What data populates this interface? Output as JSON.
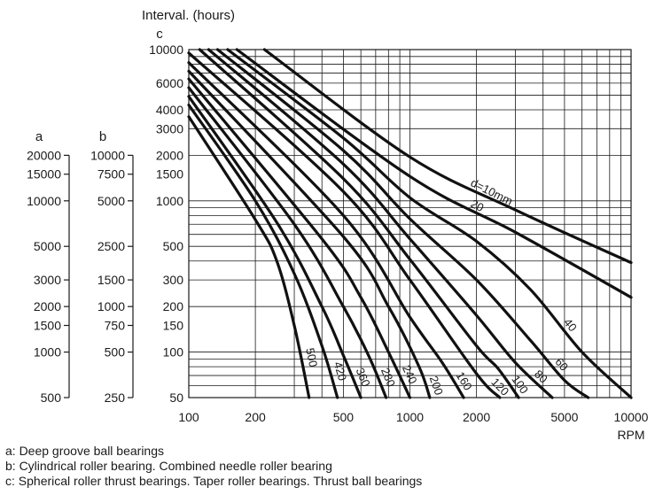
{
  "chart_data": {
    "type": "line",
    "title": "",
    "xlabel": "RPM",
    "ylabel": "Interval. (hours)",
    "x_scale": "log",
    "y_scale": "log",
    "xlim": [
      100,
      10000
    ],
    "ylim": [
      50,
      10000
    ],
    "grid": true,
    "x_ticks": [
      100,
      200,
      500,
      1000,
      2000,
      5000,
      10000
    ],
    "x_tick_labels": [
      "100",
      "200",
      "500",
      "1000",
      "2000",
      "5000",
      "10000"
    ],
    "axes": [
      {
        "key": "c",
        "label": "c",
        "ticks": [
          10000,
          6000,
          4000,
          3000,
          2000,
          1500,
          1000,
          500,
          300,
          200,
          150,
          100,
          50
        ],
        "tick_labels": [
          "10000",
          "6000",
          "4000",
          "3000",
          "2000",
          "1500",
          "1000",
          "500",
          "300",
          "200",
          "150",
          "100",
          "50"
        ]
      },
      {
        "key": "b",
        "label": "b",
        "tick_labels": [
          "10000",
          "7500",
          "5000",
          "2500",
          "1500",
          "1000",
          "750",
          "500",
          "250"
        ],
        "tick_c_values": [
          2000,
          1500,
          1000,
          500,
          300,
          200,
          150,
          100,
          50
        ]
      },
      {
        "key": "a",
        "label": "a",
        "tick_labels": [
          "20000",
          "15000",
          "10000",
          "5000",
          "3000",
          "2000",
          "1500",
          "1000",
          "500"
        ],
        "tick_c_values": [
          2000,
          1500,
          1000,
          500,
          300,
          200,
          150,
          100,
          50
        ]
      }
    ],
    "series": [
      {
        "name": "d=10mm",
        "points": [
          [
            220,
            10000
          ],
          [
            1000,
            1950
          ],
          [
            3000,
            870
          ],
          [
            10000,
            390
          ]
        ]
      },
      {
        "name": "20",
        "points": [
          [
            165,
            10000
          ],
          [
            1000,
            1450
          ],
          [
            3000,
            620
          ],
          [
            10000,
            230
          ]
        ]
      },
      {
        "name": "40",
        "points": [
          [
            150,
            10000
          ],
          [
            500,
            2600
          ],
          [
            1000,
            1050
          ],
          [
            2000,
            540
          ],
          [
            3500,
            260
          ],
          [
            6000,
            100
          ],
          [
            10000,
            50
          ]
        ]
      },
      {
        "name": "60",
        "points": [
          [
            135,
            10000
          ],
          [
            500,
            2150
          ],
          [
            1000,
            760
          ],
          [
            2000,
            300
          ],
          [
            3500,
            120
          ],
          [
            5000,
            65
          ],
          [
            6400,
            50
          ]
        ]
      },
      {
        "name": "80",
        "points": [
          [
            123,
            10000
          ],
          [
            500,
            1750
          ],
          [
            1000,
            560
          ],
          [
            2000,
            175
          ],
          [
            3000,
            85
          ],
          [
            4400,
            50
          ]
        ]
      },
      {
        "name": "100",
        "points": [
          [
            112,
            10000
          ],
          [
            500,
            1400
          ],
          [
            1000,
            410
          ],
          [
            2000,
            110
          ],
          [
            2500,
            78
          ],
          [
            3100,
            50
          ]
        ]
      },
      {
        "name": "120",
        "points": [
          [
            100,
            9500
          ],
          [
            500,
            1150
          ],
          [
            1000,
            300
          ],
          [
            2000,
            72
          ],
          [
            2550,
            50
          ]
        ]
      },
      {
        "name": "160",
        "points": [
          [
            100,
            8200
          ],
          [
            500,
            800
          ],
          [
            1000,
            170
          ],
          [
            1400,
            85
          ],
          [
            1750,
            50
          ]
        ]
      },
      {
        "name": "200",
        "points": [
          [
            100,
            7200
          ],
          [
            500,
            580
          ],
          [
            800,
            200
          ],
          [
            1100,
            80
          ],
          [
            1230,
            50
          ]
        ]
      },
      {
        "name": "240",
        "points": [
          [
            100,
            6400
          ],
          [
            400,
            560
          ],
          [
            600,
            230
          ],
          [
            800,
            100
          ],
          [
            1000,
            50
          ]
        ]
      },
      {
        "name": "280",
        "points": [
          [
            100,
            5600
          ],
          [
            300,
            700
          ],
          [
            500,
            200
          ],
          [
            650,
            95
          ],
          [
            780,
            50
          ]
        ]
      },
      {
        "name": "360",
        "points": [
          [
            100,
            4900
          ],
          [
            250,
            720
          ],
          [
            400,
            200
          ],
          [
            500,
            95
          ],
          [
            600,
            50
          ]
        ]
      },
      {
        "name": "420",
        "points": [
          [
            100,
            4300
          ],
          [
            200,
            1000
          ],
          [
            300,
            330
          ],
          [
            400,
            110
          ],
          [
            470,
            50
          ]
        ]
      },
      {
        "name": "500",
        "points": [
          [
            100,
            3600
          ],
          [
            200,
            750
          ],
          [
            250,
            400
          ],
          [
            300,
            150
          ],
          [
            350,
            50
          ]
        ]
      }
    ]
  },
  "legend": [
    "a: Deep groove ball bearings",
    "b: Cylindrical roller bearing. Combined needle roller bearing",
    "c: Spherical roller thrust bearings. Taper roller bearings. Thrust  ball bearings"
  ]
}
